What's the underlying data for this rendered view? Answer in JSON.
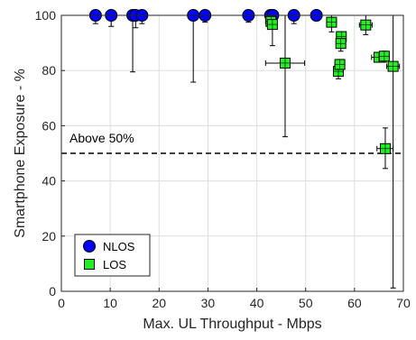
{
  "chart_data": {
    "type": "scatter",
    "xlabel": "Max. UL Throughput - Mbps",
    "ylabel": "Smartphone Exposure - %",
    "xlim": [
      0,
      70
    ],
    "ylim": [
      0,
      100
    ],
    "xticks": [
      0,
      10,
      20,
      30,
      40,
      50,
      60,
      70
    ],
    "yticks": [
      0,
      20,
      40,
      60,
      80,
      100
    ],
    "grid": true,
    "reference_line": {
      "y": 50,
      "style": "dashed",
      "label": "Above 50%"
    },
    "legend": {
      "placement": "bottom-left",
      "entries": [
        "NLOS",
        "LOS"
      ]
    },
    "series": [
      {
        "name": "NLOS",
        "marker": "circle",
        "color": "#0000ff",
        "points": [
          {
            "x": 7.0,
            "y": 100,
            "xerr": [
              7.0,
              7.0
            ],
            "yerr": [
              97.0,
              100
            ]
          },
          {
            "x": 10.2,
            "y": 100,
            "xerr": [
              10.2,
              10.2
            ],
            "yerr": [
              96.0,
              100
            ]
          },
          {
            "x": 14.6,
            "y": 100,
            "xerr": [
              14.1,
              16.5
            ],
            "yerr": [
              79.5,
              100
            ]
          },
          {
            "x": 15.2,
            "y": 100,
            "xerr": [
              15.2,
              15.2
            ],
            "yerr": [
              95.5,
              100
            ]
          },
          {
            "x": 16.5,
            "y": 100,
            "xerr": [
              16.5,
              16.5
            ],
            "yerr": [
              97.0,
              100
            ]
          },
          {
            "x": 27.0,
            "y": 100,
            "xerr": [
              26.3,
              27.7
            ],
            "yerr": [
              75.8,
              100
            ]
          },
          {
            "x": 29.4,
            "y": 100,
            "xerr": [
              29.4,
              29.4
            ],
            "yerr": [
              97.5,
              100
            ]
          },
          {
            "x": 38.3,
            "y": 100,
            "xerr": [
              38.3,
              38.3
            ],
            "yerr": [
              97.5,
              100
            ]
          },
          {
            "x": 42.8,
            "y": 100,
            "xerr": [
              42.1,
              43.5
            ],
            "yerr": [
              97.0,
              100
            ]
          },
          {
            "x": 43.3,
            "y": 100,
            "xerr": [
              42.6,
              44.0
            ],
            "yerr": [
              97.0,
              100
            ]
          },
          {
            "x": 47.6,
            "y": 100,
            "xerr": [
              46.8,
              48.5
            ],
            "yerr": [
              97.0,
              100
            ]
          },
          {
            "x": 52.2,
            "y": 100,
            "xerr": [
              51.3,
              53.0
            ],
            "yerr": [
              98.0,
              100
            ]
          }
        ]
      },
      {
        "name": "LOS",
        "marker": "square",
        "color": "#22ee22",
        "points": [
          {
            "x": 42.9,
            "y": 97.8,
            "xerr": [
              41.8,
              44.0
            ],
            "yerr": [
              96.5,
              98.5
            ]
          },
          {
            "x": 43.2,
            "y": 96.7,
            "xerr": [
              42.4,
              44.0
            ],
            "yerr": [
              89.0,
              99.0
            ]
          },
          {
            "x": 45.8,
            "y": 82.7,
            "xerr": [
              41.8,
              49.8
            ],
            "yerr": [
              56.0,
              100
            ]
          },
          {
            "x": 55.3,
            "y": 97.5,
            "xerr": [
              54.3,
              56.3
            ],
            "yerr": [
              94.0,
              100
            ]
          },
          {
            "x": 56.7,
            "y": 79.7,
            "xerr": [
              55.9,
              57.6
            ],
            "yerr": [
              77.0,
              82.0
            ]
          },
          {
            "x": 57.3,
            "y": 92.3,
            "xerr": [
              56.8,
              57.8
            ],
            "yerr": [
              90.5,
              94.0
            ]
          },
          {
            "x": 57.2,
            "y": 89.8,
            "xerr": [
              56.6,
              57.9
            ],
            "yerr": [
              87.0,
              92.0
            ]
          },
          {
            "x": 57.0,
            "y": 82.2,
            "xerr": [
              56.0,
              58.0
            ],
            "yerr": [
              80.0,
              84.0
            ]
          },
          {
            "x": 62.3,
            "y": 96.5,
            "xerr": [
              61.0,
              63.6
            ],
            "yerr": [
              93.0,
              100
            ]
          },
          {
            "x": 65.0,
            "y": 84.8,
            "xerr": [
              63.5,
              66.5
            ],
            "yerr": [
              83.0,
              86.5
            ]
          },
          {
            "x": 66.1,
            "y": 85.2,
            "xerr": [
              65.2,
              67.1
            ],
            "yerr": [
              83.0,
              87.0
            ]
          },
          {
            "x": 66.3,
            "y": 51.7,
            "xerr": [
              64.6,
              67.9
            ],
            "yerr": [
              44.5,
              59.2
            ]
          },
          {
            "x": 67.9,
            "y": 81.5,
            "xerr": [
              66.6,
              69.2
            ],
            "yerr": [
              1.2,
              100
            ]
          }
        ]
      }
    ]
  }
}
